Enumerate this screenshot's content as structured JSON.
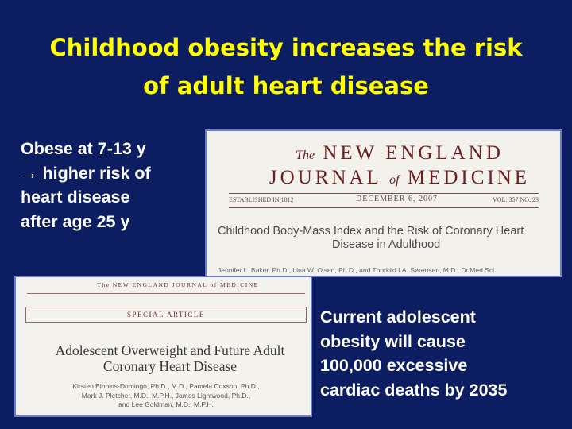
{
  "title": {
    "line1": "Childhood obesity increases the risk",
    "line2": "of adult heart disease"
  },
  "left_text": {
    "line1": "Obese at 7-13 y",
    "line2": "→ higher risk of",
    "line3": "heart disease",
    "line4": "after age 25 y"
  },
  "right_text": {
    "line1": "Current adolescent",
    "line2": "obesity will cause",
    "line3": "100,000 excessive",
    "line4": "cardiac deaths by 2035"
  },
  "clipping1": {
    "masthead_the": "The",
    "masthead_new_england": "NEW ENGLAND",
    "masthead_journal": "JOURNAL",
    "masthead_of": "of",
    "masthead_medicine": "MEDICINE",
    "established": "ESTABLISHED IN 1812",
    "date": "DECEMBER 6, 2007",
    "volume": "VOL. 357   NO. 23",
    "article_title_line1": "Childhood Body-Mass Index and the Risk of Coronary Heart",
    "article_title_line2": "Disease in Adulthood",
    "authors": "Jennifer L. Baker, Ph.D., Lina W. Olsen, Ph.D., and Thorkild I.A. Sørensen, M.D., Dr.Med.Sci."
  },
  "clipping2": {
    "masthead": "The NEW ENGLAND JOURNAL of MEDICINE",
    "section": "SPECIAL ARTICLE",
    "article_title_line1": "Adolescent Overweight and Future Adult",
    "article_title_line2": "Coronary Heart Disease",
    "authors_line1": "Kirsten Bibbins-Domingo, Ph.D., M.D., Pamela Coxson, Ph.D.,",
    "authors_line2": "Mark J. Pletcher, M.D., M.P.H., James Lightwood, Ph.D.,",
    "authors_line3": "and Lee Goldman, M.D., M.P.H."
  }
}
